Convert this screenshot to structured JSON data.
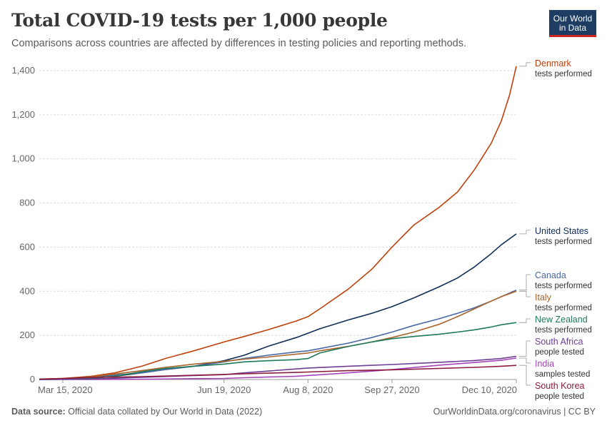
{
  "header": {
    "title": "Total COVID-19 tests per 1,000 people",
    "subtitle": "Comparisons across countries are affected by differences in testing policies and reporting methods.",
    "logo_line1": "Our World",
    "logo_line2": "in Data"
  },
  "footer": {
    "source_label": "Data source:",
    "source_text": "Official data collated by Our World in Data (2022)",
    "right_text": "OurWorldinData.org/coronavirus | CC BY"
  },
  "colors": {
    "brand": "#1d3d63",
    "accent": "#ce261e"
  },
  "chart_data": {
    "type": "line",
    "title": "Total COVID-19 tests per 1,000 people",
    "xlabel": "",
    "ylabel": "",
    "x_range": [
      "2020-03-01",
      "2020-12-10"
    ],
    "ylim": [
      0,
      1400
    ],
    "y_ticks": [
      0,
      200,
      400,
      600,
      800,
      1000,
      1200,
      1400
    ],
    "y_tick_labels": [
      "0",
      "200",
      "400",
      "600",
      "800",
      "1,000",
      "1,200",
      "1,400"
    ],
    "x_ticks": [
      "2020-03-15",
      "2020-06-19",
      "2020-08-08",
      "2020-09-27",
      "2020-12-10"
    ],
    "x_tick_labels": [
      "Mar 15, 2020",
      "Jun 19, 2020",
      "Aug 8, 2020",
      "Sep 27, 2020",
      "Dec 10, 2020"
    ],
    "grid": "horizontal dashed",
    "legend": "right, inline labels",
    "series": [
      {
        "name": "Denmark",
        "unit_label": "tests performed",
        "color": "#c0410c",
        "points": [
          [
            "2020-03-01",
            2
          ],
          [
            "2020-03-15",
            5
          ],
          [
            "2020-04-01",
            15
          ],
          [
            "2020-04-15",
            30
          ],
          [
            "2020-05-01",
            60
          ],
          [
            "2020-05-15",
            95
          ],
          [
            "2020-06-01",
            130
          ],
          [
            "2020-06-19",
            170
          ],
          [
            "2020-07-01",
            195
          ],
          [
            "2020-07-15",
            225
          ],
          [
            "2020-08-01",
            265
          ],
          [
            "2020-08-08",
            285
          ],
          [
            "2020-08-15",
            320
          ],
          [
            "2020-09-01",
            410
          ],
          [
            "2020-09-15",
            500
          ],
          [
            "2020-09-27",
            600
          ],
          [
            "2020-10-10",
            700
          ],
          [
            "2020-10-25",
            780
          ],
          [
            "2020-11-05",
            850
          ],
          [
            "2020-11-15",
            950
          ],
          [
            "2020-11-25",
            1070
          ],
          [
            "2020-12-01",
            1170
          ],
          [
            "2020-12-06",
            1290
          ],
          [
            "2020-12-10",
            1420
          ]
        ]
      },
      {
        "name": "United States",
        "unit_label": "tests performed",
        "color": "#102e57",
        "points": [
          [
            "2020-03-01",
            0
          ],
          [
            "2020-03-15",
            1
          ],
          [
            "2020-04-01",
            5
          ],
          [
            "2020-04-15",
            15
          ],
          [
            "2020-05-01",
            30
          ],
          [
            "2020-05-15",
            45
          ],
          [
            "2020-06-01",
            60
          ],
          [
            "2020-06-19",
            85
          ],
          [
            "2020-07-01",
            110
          ],
          [
            "2020-07-15",
            150
          ],
          [
            "2020-08-01",
            190
          ],
          [
            "2020-08-08",
            210
          ],
          [
            "2020-08-15",
            230
          ],
          [
            "2020-09-01",
            270
          ],
          [
            "2020-09-15",
            300
          ],
          [
            "2020-09-27",
            330
          ],
          [
            "2020-10-10",
            370
          ],
          [
            "2020-10-25",
            420
          ],
          [
            "2020-11-05",
            460
          ],
          [
            "2020-11-15",
            510
          ],
          [
            "2020-11-25",
            570
          ],
          [
            "2020-12-01",
            610
          ],
          [
            "2020-12-10",
            660
          ]
        ]
      },
      {
        "name": "Canada",
        "unit_label": "tests performed",
        "color": "#4a69a4",
        "points": [
          [
            "2020-03-01",
            0
          ],
          [
            "2020-03-15",
            2
          ],
          [
            "2020-04-01",
            10
          ],
          [
            "2020-04-15",
            20
          ],
          [
            "2020-05-01",
            30
          ],
          [
            "2020-05-15",
            45
          ],
          [
            "2020-06-01",
            60
          ],
          [
            "2020-06-19",
            80
          ],
          [
            "2020-07-01",
            95
          ],
          [
            "2020-07-15",
            110
          ],
          [
            "2020-08-01",
            125
          ],
          [
            "2020-08-08",
            130
          ],
          [
            "2020-08-15",
            140
          ],
          [
            "2020-09-01",
            165
          ],
          [
            "2020-09-15",
            190
          ],
          [
            "2020-09-27",
            215
          ],
          [
            "2020-10-10",
            245
          ],
          [
            "2020-10-25",
            275
          ],
          [
            "2020-11-05",
            300
          ],
          [
            "2020-11-15",
            325
          ],
          [
            "2020-11-25",
            355
          ],
          [
            "2020-12-01",
            375
          ],
          [
            "2020-12-10",
            405
          ]
        ]
      },
      {
        "name": "Italy",
        "unit_label": "tests performed",
        "color": "#a8652c",
        "points": [
          [
            "2020-03-01",
            1
          ],
          [
            "2020-03-15",
            3
          ],
          [
            "2020-04-01",
            12
          ],
          [
            "2020-04-15",
            25
          ],
          [
            "2020-05-01",
            40
          ],
          [
            "2020-05-15",
            55
          ],
          [
            "2020-06-01",
            70
          ],
          [
            "2020-06-19",
            82
          ],
          [
            "2020-07-01",
            92
          ],
          [
            "2020-07-15",
            102
          ],
          [
            "2020-08-01",
            115
          ],
          [
            "2020-08-08",
            120
          ],
          [
            "2020-08-15",
            130
          ],
          [
            "2020-09-01",
            150
          ],
          [
            "2020-09-15",
            170
          ],
          [
            "2020-09-27",
            190
          ],
          [
            "2020-10-10",
            215
          ],
          [
            "2020-10-25",
            250
          ],
          [
            "2020-11-05",
            285
          ],
          [
            "2020-11-15",
            320
          ],
          [
            "2020-11-25",
            355
          ],
          [
            "2020-12-01",
            375
          ],
          [
            "2020-12-10",
            400
          ]
        ]
      },
      {
        "name": "New Zealand",
        "unit_label": "tests performed",
        "color": "#1f7a5a",
        "points": [
          [
            "2020-03-01",
            0
          ],
          [
            "2020-03-15",
            1
          ],
          [
            "2020-04-01",
            5
          ],
          [
            "2020-04-15",
            15
          ],
          [
            "2020-05-01",
            35
          ],
          [
            "2020-05-15",
            50
          ],
          [
            "2020-06-01",
            60
          ],
          [
            "2020-06-19",
            70
          ],
          [
            "2020-07-01",
            80
          ],
          [
            "2020-07-15",
            85
          ],
          [
            "2020-08-01",
            90
          ],
          [
            "2020-08-08",
            95
          ],
          [
            "2020-08-15",
            120
          ],
          [
            "2020-09-01",
            150
          ],
          [
            "2020-09-15",
            170
          ],
          [
            "2020-09-27",
            185
          ],
          [
            "2020-10-10",
            195
          ],
          [
            "2020-10-25",
            205
          ],
          [
            "2020-11-05",
            215
          ],
          [
            "2020-11-15",
            225
          ],
          [
            "2020-11-25",
            238
          ],
          [
            "2020-12-01",
            248
          ],
          [
            "2020-12-10",
            258
          ]
        ]
      },
      {
        "name": "India",
        "unit_label": "samples tested",
        "color": "#a347b8",
        "points": [
          [
            "2020-03-01",
            0
          ],
          [
            "2020-04-01",
            0
          ],
          [
            "2020-05-01",
            1
          ],
          [
            "2020-06-01",
            4
          ],
          [
            "2020-06-19",
            5
          ],
          [
            "2020-07-01",
            8
          ],
          [
            "2020-08-01",
            15
          ],
          [
            "2020-08-08",
            18
          ],
          [
            "2020-09-01",
            30
          ],
          [
            "2020-09-27",
            45
          ],
          [
            "2020-10-25",
            65
          ],
          [
            "2020-11-15",
            77
          ],
          [
            "2020-12-01",
            87
          ],
          [
            "2020-12-10",
            97
          ]
        ]
      },
      {
        "name": "South Africa",
        "unit_label": "people tested",
        "color": "#6d3e91",
        "points": [
          [
            "2020-03-01",
            0
          ],
          [
            "2020-04-01",
            2
          ],
          [
            "2020-05-01",
            10
          ],
          [
            "2020-06-01",
            18
          ],
          [
            "2020-06-19",
            22
          ],
          [
            "2020-07-01",
            30
          ],
          [
            "2020-08-01",
            48
          ],
          [
            "2020-08-08",
            52
          ],
          [
            "2020-09-01",
            60
          ],
          [
            "2020-09-27",
            68
          ],
          [
            "2020-10-25",
            78
          ],
          [
            "2020-11-15",
            86
          ],
          [
            "2020-12-01",
            95
          ],
          [
            "2020-12-10",
            105
          ]
        ]
      },
      {
        "name": "South Korea",
        "unit_label": "people tested",
        "color": "#8c1b3c",
        "points": [
          [
            "2020-03-01",
            2
          ],
          [
            "2020-03-15",
            5
          ],
          [
            "2020-04-01",
            9
          ],
          [
            "2020-05-01",
            13
          ],
          [
            "2020-06-01",
            19
          ],
          [
            "2020-06-19",
            23
          ],
          [
            "2020-07-01",
            26
          ],
          [
            "2020-08-01",
            32
          ],
          [
            "2020-08-08",
            34
          ],
          [
            "2020-09-01",
            40
          ],
          [
            "2020-09-27",
            44
          ],
          [
            "2020-10-25",
            50
          ],
          [
            "2020-11-15",
            55
          ],
          [
            "2020-12-01",
            60
          ],
          [
            "2020-12-10",
            64
          ]
        ]
      }
    ]
  }
}
